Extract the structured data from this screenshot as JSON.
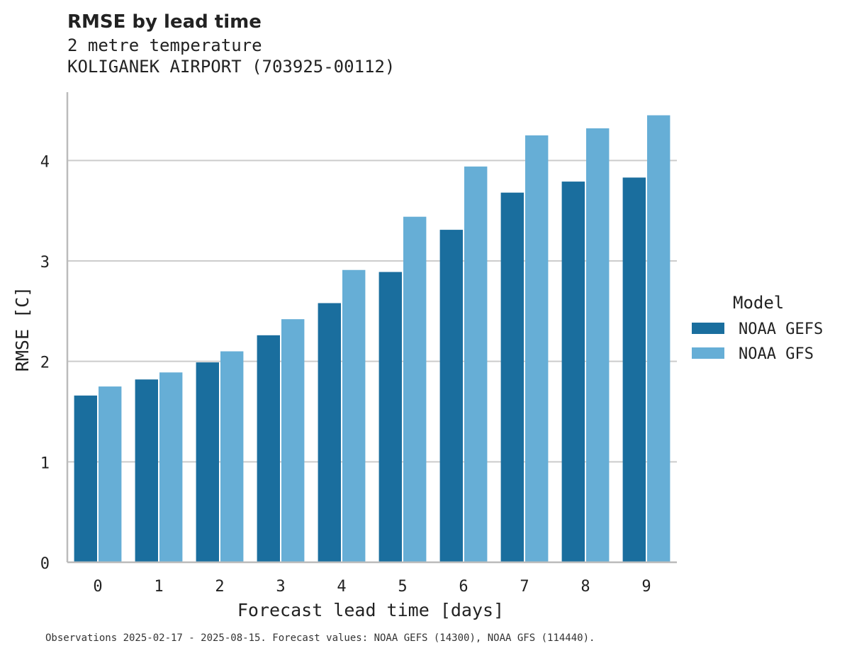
{
  "title": "RMSE by lead time",
  "subtitle_line1": "2 metre temperature",
  "subtitle_line2": "KOLIGANEK AIRPORT (703925-00112)",
  "footnote": "Observations 2025-02-17 - 2025-08-15. Forecast values: NOAA GEFS (14300), NOAA GFS (114440).",
  "colors": {
    "gefs": "#1a6e9e",
    "gfs": "#66aed6",
    "grid": "#cccccc",
    "axis": "#bbbbbb"
  },
  "chart_data": {
    "type": "bar",
    "title": "RMSE by lead time",
    "xlabel": "Forecast lead time [days]",
    "ylabel": "RMSE [C]",
    "ylim": [
      0,
      4.68
    ],
    "yticks": [
      "0",
      "1",
      "2",
      "3",
      "4"
    ],
    "categories": [
      "0",
      "1",
      "2",
      "3",
      "4",
      "5",
      "6",
      "7",
      "8",
      "9"
    ],
    "legend_title": "Model",
    "legend_position": "right",
    "series": [
      {
        "name": "NOAA GEFS",
        "values": [
          1.66,
          1.82,
          1.99,
          2.26,
          2.58,
          2.89,
          3.31,
          3.68,
          3.79,
          3.83
        ]
      },
      {
        "name": "NOAA GFS",
        "values": [
          1.75,
          1.89,
          2.1,
          2.42,
          2.91,
          3.44,
          3.94,
          4.25,
          4.32,
          4.45
        ]
      }
    ]
  }
}
